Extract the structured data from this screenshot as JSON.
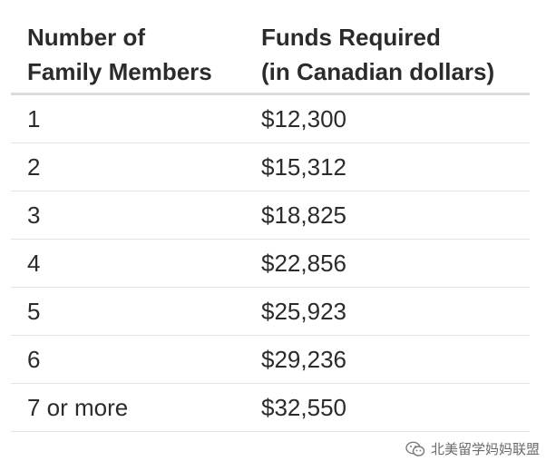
{
  "table": {
    "headers": [
      [
        "Number of",
        "Family Members"
      ],
      [
        "Funds Required",
        "(in Canadian dollars)"
      ]
    ],
    "rows": [
      [
        "1",
        "$12,300"
      ],
      [
        "2",
        "$15,312"
      ],
      [
        "3",
        "$18,825"
      ],
      [
        "4",
        "$22,856"
      ],
      [
        "5",
        "$25,923"
      ],
      [
        "6",
        "$29,236"
      ],
      [
        "7 or more",
        "$32,550"
      ]
    ]
  },
  "watermark": {
    "icon": "wechat-icon",
    "text": "北美留学妈妈联盟"
  }
}
